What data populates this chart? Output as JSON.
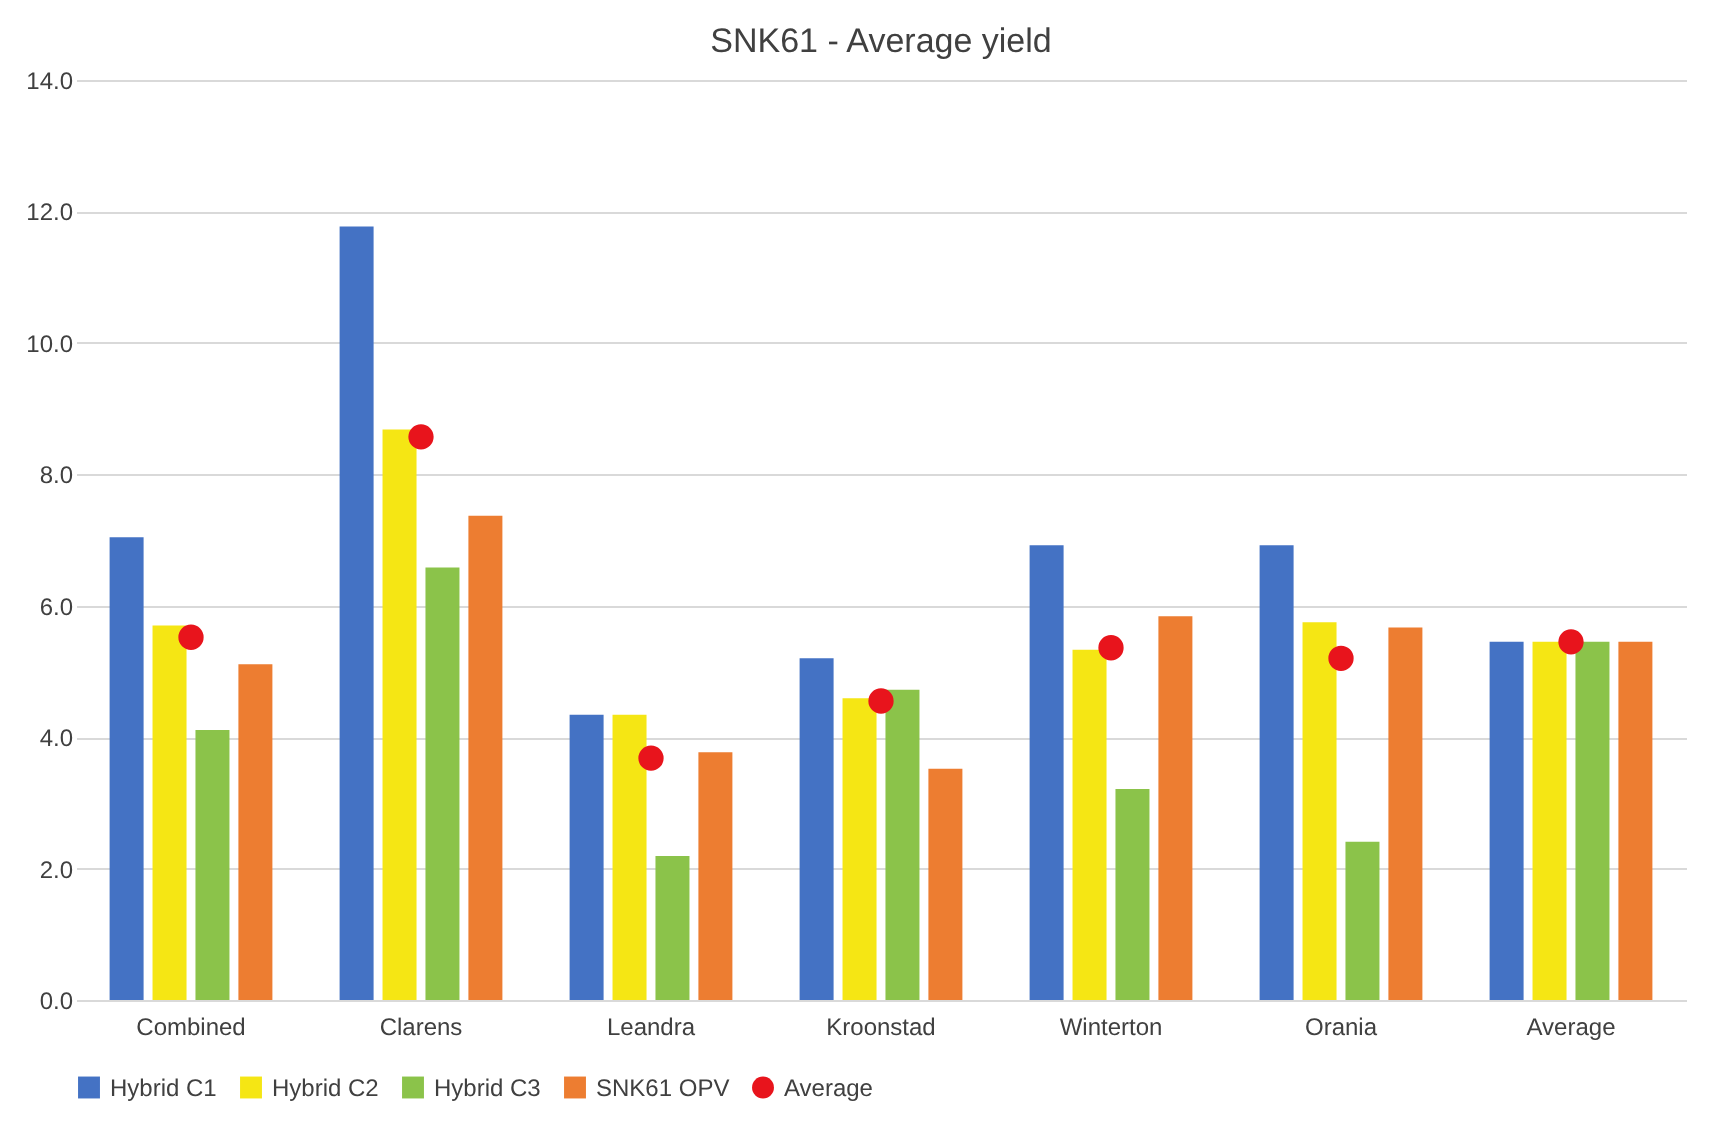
{
  "chart_data": {
    "type": "bar",
    "title": "SNK61 - Average yield",
    "categories": [
      "Combined",
      "Clarens",
      "Leandra",
      "Kroonstad",
      "Winterton",
      "Orania",
      "Average"
    ],
    "series": [
      {
        "name": "Hybrid C1",
        "color": "#4472c4",
        "values": [
          7.04,
          11.77,
          4.34,
          5.2,
          6.92,
          6.92,
          5.45
        ]
      },
      {
        "name": "Hybrid C2",
        "color": "#f5e614",
        "values": [
          5.7,
          8.68,
          4.34,
          4.59,
          5.33,
          5.75,
          5.45
        ]
      },
      {
        "name": "Hybrid C3",
        "color": "#8bc34a",
        "values": [
          4.11,
          6.58,
          2.19,
          4.72,
          3.21,
          2.41,
          5.45
        ]
      },
      {
        "name": "SNK61 OPV",
        "color": "#ed7d31",
        "values": [
          5.11,
          7.37,
          3.77,
          3.52,
          5.84,
          5.67,
          5.45
        ]
      },
      {
        "name": "Average",
        "type": "scatter",
        "color": "#e8141c",
        "marker": "circle",
        "values": [
          5.52,
          8.57,
          3.68,
          4.55,
          5.36,
          5.2,
          5.45
        ]
      }
    ],
    "ylim": [
      0,
      14
    ],
    "yticks": [
      {
        "value": 0,
        "label": "0.0"
      },
      {
        "value": 2,
        "label": "2.0"
      },
      {
        "value": 4,
        "label": "4.0"
      },
      {
        "value": 6,
        "label": "6.0"
      },
      {
        "value": 8,
        "label": "8.0"
      },
      {
        "value": 10,
        "label": "10.0"
      },
      {
        "value": 12,
        "label": "12.0"
      },
      {
        "value": 14,
        "label": "14.0"
      }
    ],
    "grid": "y",
    "legend": "bottom"
  }
}
